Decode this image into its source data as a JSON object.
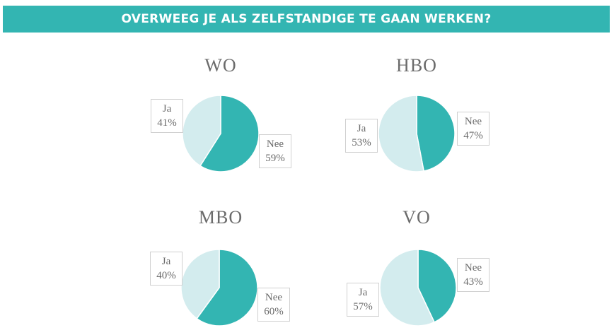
{
  "header": {
    "title": "OVERWEEG JE ALS ZELFSTANDIGE TE GAAN WERKEN?"
  },
  "colors": {
    "nee": "#33b5b2",
    "ja": "#d3ecee",
    "banner": "#33b5b2"
  },
  "charts": [
    {
      "title": "WO",
      "ja_label": "Ja",
      "ja_value": "41%",
      "nee_label": "Nee",
      "nee_value": "59%"
    },
    {
      "title": "HBO",
      "ja_label": "Ja",
      "ja_value": "53%",
      "nee_label": "Nee",
      "nee_value": "47%"
    },
    {
      "title": "MBO",
      "ja_label": "Ja",
      "ja_value": "40%",
      "nee_label": "Nee",
      "nee_value": "60%"
    },
    {
      "title": "VO",
      "ja_label": "Ja",
      "ja_value": "57%",
      "nee_label": "Nee",
      "nee_value": "43%"
    }
  ],
  "chart_data": [
    {
      "type": "pie",
      "title": "WO",
      "categories": [
        "Nee",
        "Ja"
      ],
      "values": [
        59,
        41
      ]
    },
    {
      "type": "pie",
      "title": "HBO",
      "categories": [
        "Nee",
        "Ja"
      ],
      "values": [
        47,
        53
      ]
    },
    {
      "type": "pie",
      "title": "MBO",
      "categories": [
        "Nee",
        "Ja"
      ],
      "values": [
        60,
        40
      ]
    },
    {
      "type": "pie",
      "title": "VO",
      "categories": [
        "Nee",
        "Ja"
      ],
      "values": [
        43,
        57
      ]
    }
  ]
}
